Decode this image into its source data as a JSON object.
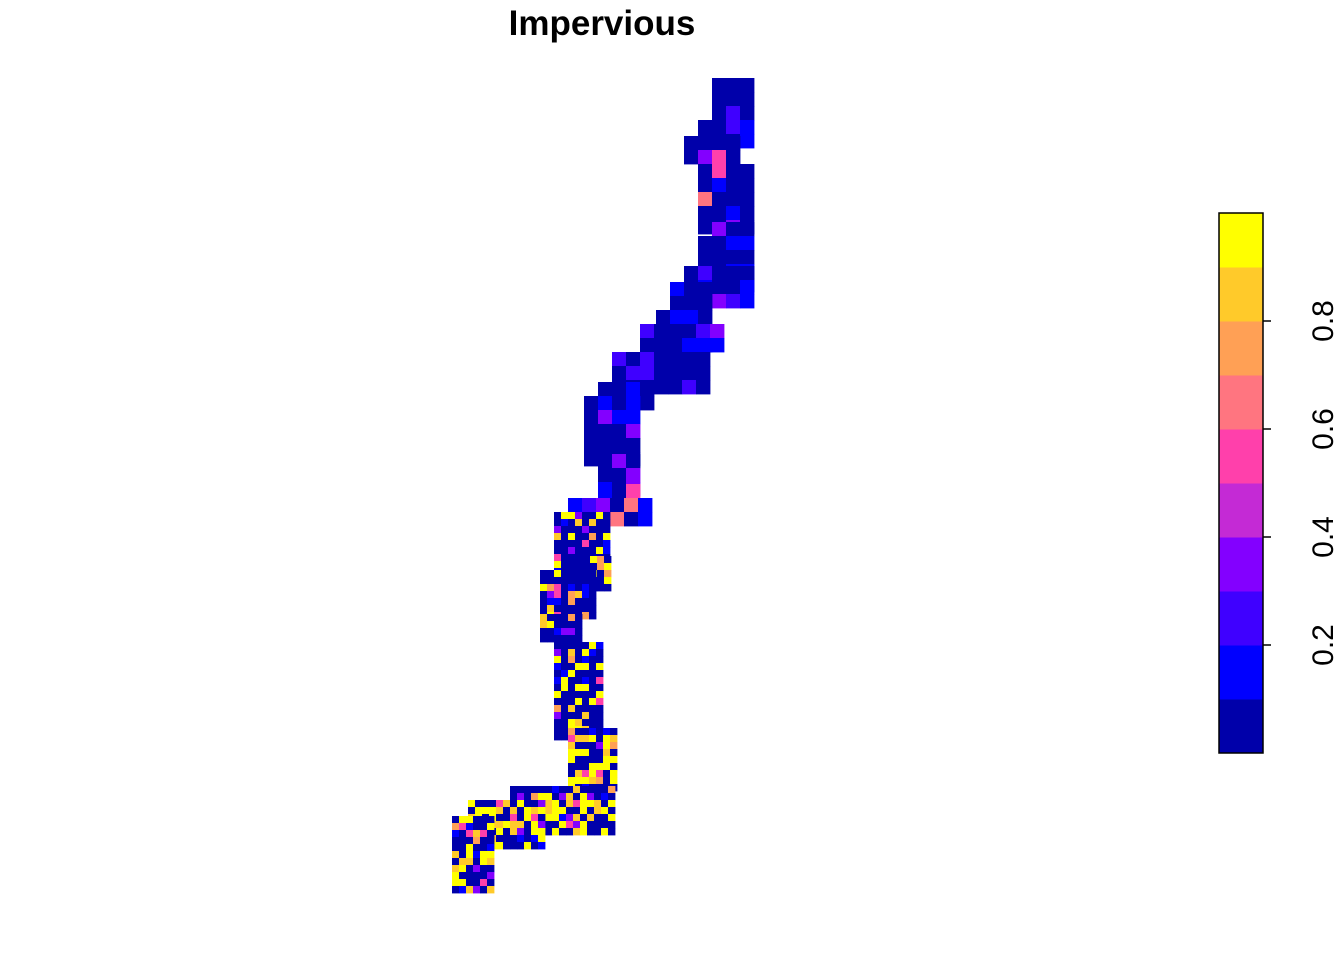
{
  "title": "Impervious",
  "legend": {
    "ticks": [
      "0.2",
      "0.4",
      "0.6",
      "0.8"
    ],
    "tick_values": [
      0.2,
      0.4,
      0.6,
      0.8
    ],
    "range": [
      0,
      1
    ],
    "colors": [
      "#0000AA",
      "#0000FF",
      "#3F00FF",
      "#8300FF",
      "#C42AD5",
      "#FF40AB",
      "#FF7580",
      "#FFA055",
      "#FFCA2A",
      "#FFFF00"
    ]
  },
  "chart_data": {
    "type": "heatmap",
    "title": "Impervious",
    "value_range": [
      0,
      1
    ],
    "description_scale": "continuous color ramp from dark blue (0) through purple and pink to yellow (1)",
    "legend_ticks": [
      0.2,
      0.4,
      0.6,
      0.8
    ]
  }
}
